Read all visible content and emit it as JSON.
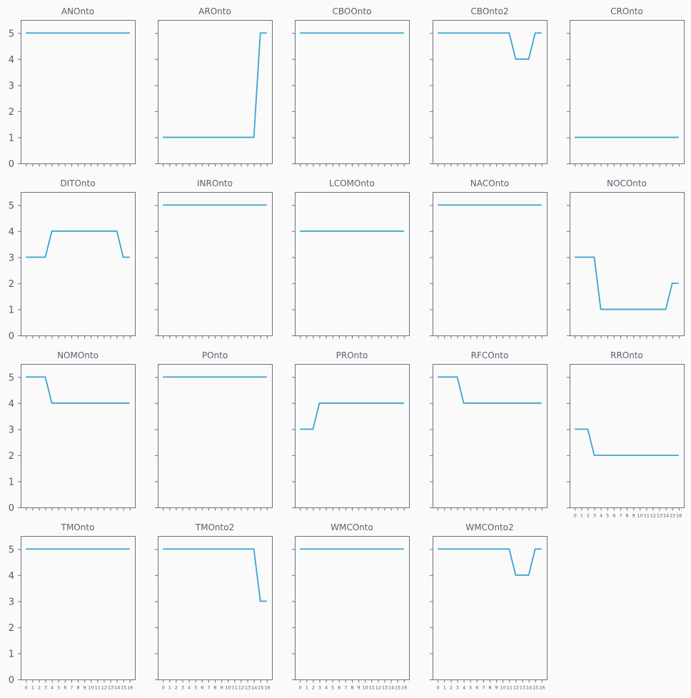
{
  "chart_data": {
    "type": "line",
    "layout": "small-multiples",
    "ncols": 5,
    "grid": false,
    "sharey": true,
    "ylim": [
      0,
      5.5
    ],
    "yticks": [
      0,
      1,
      2,
      3,
      4,
      5
    ],
    "x": [
      0,
      1,
      2,
      3,
      4,
      5,
      6,
      7,
      8,
      9,
      10,
      11,
      12,
      13,
      14,
      15,
      16
    ],
    "xtick_labels": [
      "0",
      "1",
      "2",
      "3",
      "4",
      "5",
      "6",
      "7",
      "8",
      "9",
      "10",
      "11",
      "12",
      "13",
      "14",
      "15",
      "16"
    ],
    "line_color": "#3ba3d0",
    "panels": [
      {
        "title": "ANOnto",
        "values": [
          5,
          5,
          5,
          5,
          5,
          5,
          5,
          5,
          5,
          5,
          5,
          5,
          5,
          5,
          5,
          5,
          5
        ]
      },
      {
        "title": "AROnto",
        "values": [
          1,
          1,
          1,
          1,
          1,
          1,
          1,
          1,
          1,
          1,
          1,
          1,
          1,
          1,
          1,
          5,
          5
        ]
      },
      {
        "title": "CBOOnto",
        "values": [
          5,
          5,
          5,
          5,
          5,
          5,
          5,
          5,
          5,
          5,
          5,
          5,
          5,
          5,
          5,
          5,
          5
        ]
      },
      {
        "title": "CBOnto2",
        "values": [
          5,
          5,
          5,
          5,
          5,
          5,
          5,
          5,
          5,
          5,
          5,
          5,
          4,
          4,
          4,
          5,
          5
        ]
      },
      {
        "title": "CROnto",
        "values": [
          1,
          1,
          1,
          1,
          1,
          1,
          1,
          1,
          1,
          1,
          1,
          1,
          1,
          1,
          1,
          1,
          1
        ]
      },
      {
        "title": "DITOnto",
        "values": [
          3,
          3,
          3,
          3,
          4,
          4,
          4,
          4,
          4,
          4,
          4,
          4,
          4,
          4,
          4,
          3,
          3
        ]
      },
      {
        "title": "INROnto",
        "values": [
          5,
          5,
          5,
          5,
          5,
          5,
          5,
          5,
          5,
          5,
          5,
          5,
          5,
          5,
          5,
          5,
          5
        ]
      },
      {
        "title": "LCOMOnto",
        "values": [
          4,
          4,
          4,
          4,
          4,
          4,
          4,
          4,
          4,
          4,
          4,
          4,
          4,
          4,
          4,
          4,
          4
        ]
      },
      {
        "title": "NACOnto",
        "values": [
          5,
          5,
          5,
          5,
          5,
          5,
          5,
          5,
          5,
          5,
          5,
          5,
          5,
          5,
          5,
          5,
          5
        ]
      },
      {
        "title": "NOCOnto",
        "values": [
          3,
          3,
          3,
          3,
          1,
          1,
          1,
          1,
          1,
          1,
          1,
          1,
          1,
          1,
          1,
          2,
          2
        ]
      },
      {
        "title": "NOMOnto",
        "values": [
          5,
          5,
          5,
          5,
          4,
          4,
          4,
          4,
          4,
          4,
          4,
          4,
          4,
          4,
          4,
          4,
          4
        ]
      },
      {
        "title": "POnto",
        "values": [
          5,
          5,
          5,
          5,
          5,
          5,
          5,
          5,
          5,
          5,
          5,
          5,
          5,
          5,
          5,
          5,
          5
        ]
      },
      {
        "title": "PROnto",
        "values": [
          3,
          3,
          3,
          4,
          4,
          4,
          4,
          4,
          4,
          4,
          4,
          4,
          4,
          4,
          4,
          4,
          4
        ]
      },
      {
        "title": "RFCOnto",
        "values": [
          5,
          5,
          5,
          5,
          4,
          4,
          4,
          4,
          4,
          4,
          4,
          4,
          4,
          4,
          4,
          4,
          4
        ]
      },
      {
        "title": "RROnto",
        "values": [
          3,
          3,
          3,
          2,
          2,
          2,
          2,
          2,
          2,
          2,
          2,
          2,
          2,
          2,
          2,
          2,
          2
        ]
      },
      {
        "title": "TMOnto",
        "values": [
          5,
          5,
          5,
          5,
          5,
          5,
          5,
          5,
          5,
          5,
          5,
          5,
          5,
          5,
          5,
          5,
          5
        ]
      },
      {
        "title": "TMOnto2",
        "values": [
          5,
          5,
          5,
          5,
          5,
          5,
          5,
          5,
          5,
          5,
          5,
          5,
          5,
          5,
          5,
          3,
          3
        ]
      },
      {
        "title": "WMCOnto",
        "values": [
          5,
          5,
          5,
          5,
          5,
          5,
          5,
          5,
          5,
          5,
          5,
          5,
          5,
          5,
          5,
          5,
          5
        ]
      },
      {
        "title": "WMCOnto2",
        "values": [
          5,
          5,
          5,
          5,
          5,
          5,
          5,
          5,
          5,
          5,
          5,
          5,
          4,
          4,
          4,
          5,
          5
        ]
      }
    ]
  }
}
